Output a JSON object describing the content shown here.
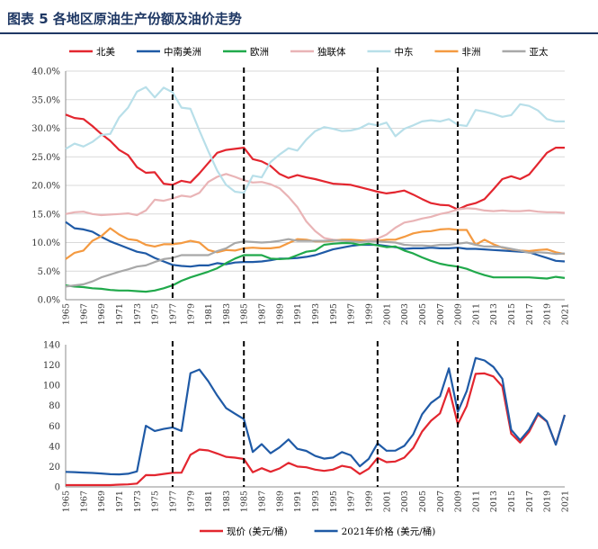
{
  "figure": {
    "title": "图表 5   各地区原油生产份额及油价走势"
  },
  "chart_data": [
    {
      "type": "line",
      "title": "",
      "xlabel": "",
      "ylabel": "",
      "ylim": [
        0,
        40
      ],
      "y_tick_labels": [
        "0.0%",
        "5.0%",
        "10.0%",
        "15.0%",
        "20.0%",
        "25.0%",
        "30.0%",
        "35.0%",
        "40.0%"
      ],
      "x_tick_labels": [
        "1965",
        "1967",
        "1969",
        "1971",
        "1973",
        "1975",
        "1977",
        "1979",
        "1981",
        "1983",
        "1985",
        "1987",
        "1989",
        "1991",
        "1993",
        "1995",
        "1997",
        "1999",
        "2001",
        "2003",
        "2005",
        "2007",
        "2009",
        "2011",
        "2013",
        "2015",
        "2017",
        "2019",
        "2021"
      ],
      "x": [
        1965,
        1966,
        1967,
        1968,
        1969,
        1970,
        1971,
        1972,
        1973,
        1974,
        1975,
        1976,
        1977,
        1978,
        1979,
        1980,
        1981,
        1982,
        1983,
        1984,
        1985,
        1986,
        1987,
        1988,
        1989,
        1990,
        1991,
        1992,
        1993,
        1994,
        1995,
        1996,
        1997,
        1998,
        1999,
        2000,
        2001,
        2002,
        2003,
        2004,
        2005,
        2006,
        2007,
        2008,
        2009,
        2010,
        2011,
        2012,
        2013,
        2014,
        2015,
        2016,
        2017,
        2018,
        2019,
        2020,
        2021
      ],
      "vlines": [
        1977,
        1985,
        2000,
        2009
      ],
      "grid": true,
      "legend": "top",
      "series": [
        {
          "name": "北美",
          "color": "#e3262f",
          "values": [
            32.4,
            31.8,
            31.6,
            30.4,
            29.0,
            27.8,
            26.2,
            25.3,
            23.2,
            22.2,
            22.3,
            20.3,
            20.1,
            20.8,
            20.5,
            22.1,
            23.9,
            25.7,
            26.2,
            26.4,
            26.6,
            24.6,
            24.2,
            23.4,
            22.0,
            21.3,
            21.8,
            21.4,
            21.1,
            20.7,
            20.3,
            20.2,
            20.1,
            19.7,
            19.3,
            18.9,
            18.6,
            18.8,
            19.1,
            18.4,
            17.6,
            16.9,
            16.6,
            16.5,
            15.8,
            16.5,
            16.9,
            17.6,
            19.3,
            21.1,
            21.6,
            21.1,
            21.9,
            23.8,
            25.7,
            26.6,
            26.6
          ]
        },
        {
          "name": "中南美洲",
          "color": "#1f5aa6",
          "values": [
            13.6,
            12.5,
            12.3,
            11.9,
            11.0,
            10.2,
            9.6,
            9.0,
            8.4,
            8.1,
            7.3,
            6.7,
            6.1,
            5.9,
            5.8,
            6.0,
            6.0,
            6.4,
            6.2,
            6.5,
            6.6,
            6.6,
            6.7,
            6.9,
            7.2,
            7.2,
            7.3,
            7.5,
            7.8,
            8.3,
            8.8,
            9.1,
            9.4,
            9.6,
            9.6,
            9.6,
            9.4,
            9.2,
            8.9,
            9.0,
            9.0,
            9.1,
            9.0,
            9.0,
            9.1,
            8.9,
            8.9,
            8.8,
            8.7,
            8.6,
            8.5,
            8.4,
            8.3,
            7.8,
            7.3,
            6.8,
            6.7
          ]
        },
        {
          "name": "欧洲",
          "color": "#20a94b",
          "values": [
            2.5,
            2.3,
            2.2,
            2.0,
            1.9,
            1.7,
            1.6,
            1.6,
            1.5,
            1.4,
            1.6,
            2.0,
            2.5,
            3.3,
            3.9,
            4.4,
            4.9,
            5.5,
            6.4,
            7.2,
            7.8,
            7.8,
            7.8,
            7.2,
            7.1,
            7.2,
            7.8,
            8.4,
            8.6,
            9.6,
            9.8,
            9.9,
            9.9,
            9.6,
            9.8,
            9.5,
            9.2,
            9.3,
            8.6,
            8.1,
            7.4,
            6.8,
            6.3,
            6.0,
            5.8,
            5.4,
            4.8,
            4.3,
            3.9,
            3.9,
            3.9,
            3.9,
            3.9,
            3.8,
            3.7,
            4.0,
            3.8
          ]
        },
        {
          "name": "独联体",
          "color": "#e9b4b6",
          "values": [
            15.0,
            15.3,
            15.4,
            15.0,
            14.8,
            14.9,
            15.0,
            15.1,
            14.8,
            15.6,
            17.5,
            17.3,
            17.7,
            18.2,
            18.0,
            18.7,
            20.6,
            21.5,
            22.0,
            21.5,
            20.9,
            20.5,
            20.6,
            20.2,
            19.5,
            18.0,
            16.2,
            13.7,
            12.0,
            10.8,
            10.5,
            10.4,
            10.3,
            10.3,
            10.5,
            10.7,
            11.4,
            12.6,
            13.5,
            13.8,
            14.2,
            14.5,
            15.0,
            15.3,
            15.8,
            16.0,
            15.9,
            15.6,
            15.5,
            15.6,
            15.5,
            15.5,
            15.6,
            15.4,
            15.3,
            15.3,
            15.2
          ]
        },
        {
          "name": "中东",
          "color": "#b8dfe9",
          "values": [
            26.4,
            27.3,
            26.8,
            27.6,
            28.8,
            29.0,
            31.9,
            33.6,
            36.4,
            37.2,
            35.4,
            37.1,
            36.3,
            33.6,
            33.4,
            29.6,
            26.0,
            22.6,
            20.1,
            18.9,
            18.7,
            21.7,
            21.4,
            24.1,
            25.4,
            26.5,
            26.1,
            28.0,
            29.5,
            30.2,
            29.9,
            29.5,
            29.6,
            30.0,
            30.8,
            30.5,
            31.0,
            28.6,
            29.9,
            30.5,
            31.2,
            31.4,
            31.2,
            31.6,
            30.6,
            30.4,
            33.2,
            32.9,
            32.5,
            32.0,
            32.3,
            34.2,
            33.9,
            33.1,
            31.6,
            31.2,
            31.2
          ]
        },
        {
          "name": "非洲",
          "color": "#f49a41",
          "values": [
            7.1,
            8.2,
            8.6,
            10.3,
            11.1,
            12.5,
            11.4,
            10.6,
            10.4,
            9.6,
            9.3,
            9.7,
            9.7,
            9.9,
            10.3,
            10.0,
            8.7,
            8.3,
            8.7,
            8.6,
            9.0,
            9.1,
            9.0,
            9.0,
            9.2,
            9.9,
            10.6,
            10.5,
            10.2,
            10.2,
            10.3,
            10.5,
            10.5,
            10.4,
            10.2,
            10.3,
            10.5,
            10.5,
            11.0,
            11.6,
            11.9,
            12.0,
            12.3,
            12.4,
            12.2,
            12.2,
            9.6,
            10.5,
            9.7,
            9.1,
            8.8,
            8.6,
            8.5,
            8.7,
            8.8,
            8.3,
            8.0
          ]
        },
        {
          "name": "亚太",
          "color": "#a8a8a8",
          "values": [
            2.3,
            2.5,
            2.7,
            3.2,
            3.9,
            4.4,
            4.9,
            5.3,
            5.8,
            6.0,
            6.6,
            7.1,
            7.3,
            7.8,
            7.8,
            7.8,
            7.8,
            8.5,
            9.0,
            9.9,
            10.2,
            10.1,
            10.0,
            10.1,
            10.3,
            10.6,
            10.3,
            10.3,
            10.3,
            10.3,
            10.4,
            10.3,
            10.2,
            10.1,
            10.2,
            10.2,
            10.1,
            10.0,
            9.6,
            9.5,
            9.5,
            9.4,
            9.6,
            9.6,
            9.8,
            10.0,
            9.6,
            9.3,
            9.3,
            9.2,
            8.9,
            8.6,
            8.2,
            8.3,
            8.2,
            8.0,
            8.1
          ]
        }
      ]
    },
    {
      "type": "line",
      "title": "",
      "xlabel": "",
      "ylabel": "",
      "ylim": [
        0,
        140
      ],
      "y_tick_labels": [
        "0",
        "20",
        "40",
        "60",
        "80",
        "100",
        "120",
        "140"
      ],
      "x_tick_labels": [
        "1965",
        "1967",
        "1969",
        "1971",
        "1973",
        "1975",
        "1977",
        "1979",
        "1981",
        "1983",
        "1985",
        "1987",
        "1989",
        "1991",
        "1993",
        "1995",
        "1997",
        "1999",
        "2001",
        "2003",
        "2005",
        "2007",
        "2009",
        "2011",
        "2013",
        "2015",
        "2017",
        "2019",
        "2021"
      ],
      "x": [
        1965,
        1966,
        1967,
        1968,
        1969,
        1970,
        1971,
        1972,
        1973,
        1974,
        1975,
        1976,
        1977,
        1978,
        1979,
        1980,
        1981,
        1982,
        1983,
        1984,
        1985,
        1986,
        1987,
        1988,
        1989,
        1990,
        1991,
        1992,
        1993,
        1994,
        1995,
        1996,
        1997,
        1998,
        1999,
        2000,
        2001,
        2002,
        2003,
        2004,
        2005,
        2006,
        2007,
        2008,
        2009,
        2010,
        2011,
        2012,
        2013,
        2014,
        2015,
        2016,
        2017,
        2018,
        2019,
        2020,
        2021
      ],
      "vlines": [
        1977,
        1985,
        2000,
        2009
      ],
      "grid": false,
      "legend": "bottom",
      "series": [
        {
          "name": "现价 (美元/桶)",
          "color": "#e3262f",
          "values": [
            1.8,
            1.8,
            1.8,
            1.8,
            1.8,
            1.8,
            2.2,
            2.5,
            3.3,
            11.6,
            11.5,
            12.8,
            13.9,
            14.0,
            31.6,
            36.8,
            35.9,
            32.9,
            29.6,
            28.8,
            27.5,
            14.4,
            18.4,
            14.9,
            18.2,
            23.7,
            20.0,
            19.3,
            17.0,
            15.8,
            17.0,
            20.7,
            19.1,
            12.7,
            17.9,
            28.5,
            24.4,
            25.0,
            28.8,
            38.3,
            54.5,
            65.1,
            72.4,
            97.3,
            61.7,
            79.6,
            111.3,
            111.7,
            108.7,
            98.9,
            52.4,
            43.7,
            54.2,
            71.3,
            64.2,
            41.8,
            70.9
          ]
        },
        {
          "name": "2021年价格 (美元/桶)",
          "color": "#1f5aa6",
          "values": [
            14.8,
            14.5,
            14.1,
            13.7,
            13.2,
            12.5,
            12.3,
            12.9,
            15.2,
            60.2,
            55.0,
            57.1,
            58.6,
            55.0,
            112.0,
            115.5,
            104.0,
            90.0,
            77.6,
            72.0,
            66.7,
            34.4,
            42.1,
            33.1,
            38.9,
            46.7,
            37.5,
            35.4,
            30.5,
            27.8,
            28.9,
            34.3,
            31.1,
            20.3,
            27.6,
            42.9,
            35.6,
            35.7,
            40.4,
            51.7,
            71.5,
            82.7,
            89.1,
            116.7,
            73.9,
            94.3,
            126.9,
            124.5,
            118.1,
            106.4,
            56.2,
            46.0,
            56.5,
            72.5,
            64.6,
            41.6,
            70.9
          ]
        }
      ]
    }
  ]
}
